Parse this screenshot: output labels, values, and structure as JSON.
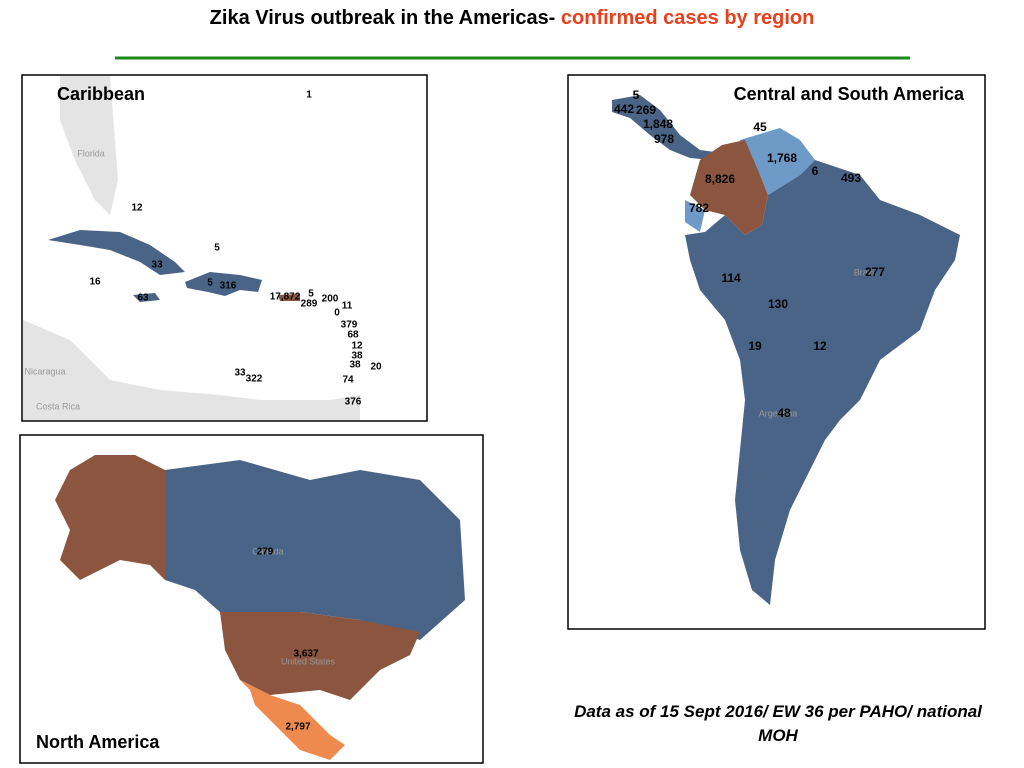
{
  "header": {
    "title": "Zika Virus outbreak in the Americas- ",
    "title_highlight": "confirmed cases by region"
  },
  "panels": [
    {
      "title": "Caribbean",
      "labels": [
        "1",
        "12",
        "5",
        "33",
        "16",
        "5",
        "316",
        "63",
        "17,872",
        "5",
        "289",
        "200",
        "11",
        "0",
        "379",
        "68",
        "12",
        "38",
        "38",
        "20",
        "33",
        "322",
        "74",
        "376"
      ],
      "places": [
        "Florida",
        "Nicaragua",
        "Costa Rica"
      ]
    },
    {
      "title": "Central and South America",
      "labels": [
        "5",
        "442",
        "269",
        "1,848",
        "978",
        "45",
        "1,768",
        "6",
        "493",
        "8,826",
        "782",
        "114",
        "277",
        "130",
        "19",
        "12",
        "48"
      ],
      "places": [
        "Brazil",
        "Argentina"
      ]
    },
    {
      "title": "North America",
      "labels": [
        "279",
        "3,637",
        "2,797"
      ],
      "places": [
        "Canada",
        "United States"
      ]
    }
  ],
  "footnote": "Data as of 15 Sept 2016/ EW 36 per PAHO/ national MOH"
}
